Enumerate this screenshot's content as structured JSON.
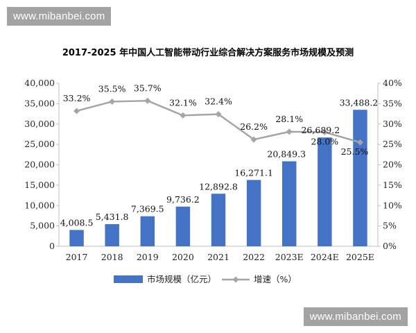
{
  "watermark_top": "www.mibanbei.com",
  "watermark_bottom": "www.mibanbei.com",
  "chart_data": {
    "type": "bar",
    "title": "2017-2025 年中国人工智能带动行业综合解决方案服务市场规模及预测",
    "categories": [
      "2017",
      "2018",
      "2019",
      "2020",
      "2021",
      "2022",
      "2023E",
      "2024E",
      "2025E"
    ],
    "series": [
      {
        "name": "市场规模（亿元）",
        "type": "bar",
        "axis": "left",
        "color": "#4472c4",
        "values": [
          4008.5,
          5431.8,
          7369.5,
          9736.2,
          12892.8,
          16271.1,
          20849.3,
          26689.2,
          33488.2
        ],
        "labels": [
          "4,008.5",
          "5,431.8",
          "7,369.5",
          "9,736.2",
          "12,892.8",
          "16,271.1",
          "20,849.3",
          "26,689.2",
          "33,488.2"
        ]
      },
      {
        "name": "增速（%）",
        "type": "line",
        "axis": "right",
        "color": "#a5a5a5",
        "values": [
          33.2,
          35.5,
          35.7,
          32.1,
          32.4,
          26.2,
          28.1,
          28.0,
          25.5
        ],
        "labels": [
          "33.2%",
          "35.5%",
          "35.7%",
          "32.1%",
          "32.4%",
          "26.2%",
          "28.1%",
          "28.0%",
          "25.5%"
        ]
      }
    ],
    "ylim_left": [
      0,
      40000
    ],
    "ylim_right": [
      0,
      40
    ],
    "left_ticks": [
      "0",
      "5,000",
      "10,000",
      "15,000",
      "20,000",
      "25,000",
      "30,000",
      "35,000",
      "40,000"
    ],
    "right_ticks": [
      "0%",
      "5%",
      "10%",
      "15%",
      "20%",
      "25%",
      "30%",
      "35%",
      "40%"
    ],
    "grid": false,
    "legend_position": "bottom"
  }
}
